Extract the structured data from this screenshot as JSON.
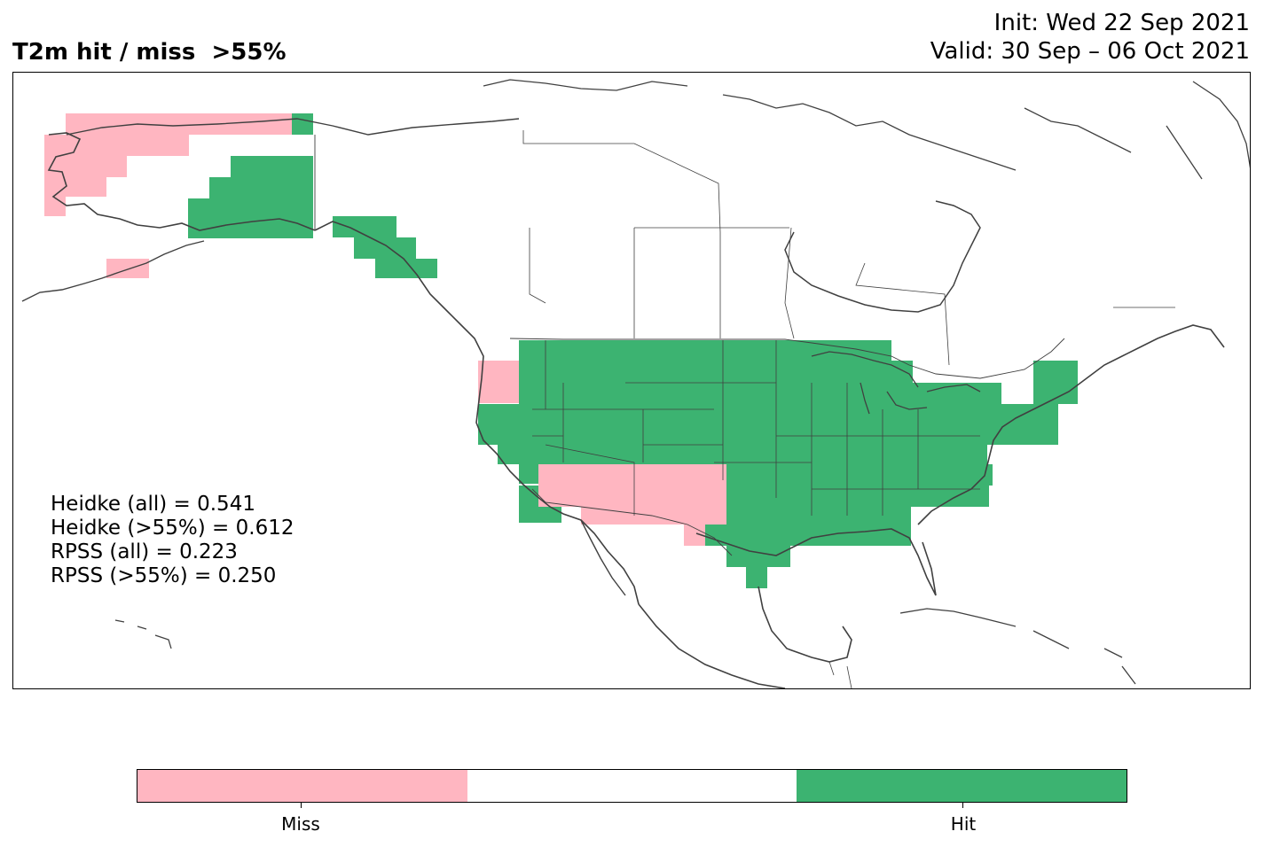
{
  "title": "T2m hit / miss  >55%",
  "init": "Init: Wed 22 Sep 2021",
  "valid": "Valid: 30 Sep – 06 Oct 2021",
  "stats": [
    "Heidke (all) = 0.541",
    "Heidke (>55%) = 0.612",
    "RPSS (all) = 0.223",
    "RPSS (>55%) = 0.250"
  ],
  "legend": {
    "miss_label": "Miss",
    "hit_label": "Hit"
  },
  "colors": {
    "miss": "#ffb6c1",
    "neutral": "#ffffff",
    "hit": "#3cb371",
    "coast": "#404040"
  }
}
